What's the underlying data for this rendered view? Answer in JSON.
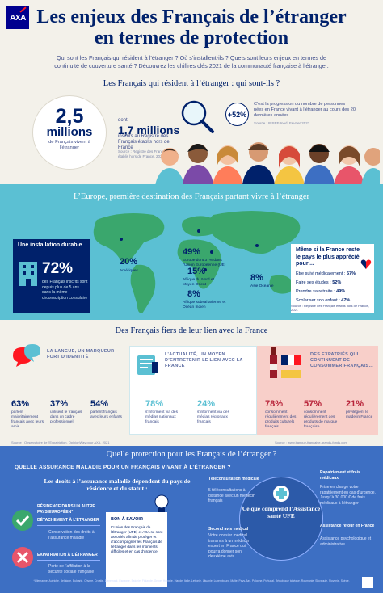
{
  "header": {
    "logo": "AXA",
    "title_line1": "Les enjeux des Français de l’étranger",
    "title_line2": "en termes de protection",
    "intro": "Qui sont les Français qui résident à l’étranger ? Où s’installent-ils ? Quels sont leurs enjeux en termes de continuité de couverture santé ? Découvrez les chiffres clés 2021 de la communauté française à l’étranger."
  },
  "section1": {
    "heading": "Les Français qui résident à l’étranger : qui sont-ils ?",
    "big_number": "2,5",
    "big_unit": "millions",
    "big_caption": "de Français vivent à l’étranger",
    "dont": "dont",
    "small_number": "1,7 millions",
    "small_caption": "inscrits au Registre des Français établis hors de France",
    "small_source": "Source : Registre des Français établis hors de France, 2021",
    "growth": "+52%",
    "growth_caption": "C’est la progression du nombre de personnes nées en France vivant à l’étranger au cours des 20 dernières années.",
    "growth_source": "Source : INSEE/Ined, Février 2021"
  },
  "section2": {
    "heading": "L’Europe, première destination des Français partant vivre à l’étranger",
    "regions": [
      {
        "pct": "49%",
        "label": "Europe dont 37% dans l’Union Européenne (UE)"
      },
      {
        "pct": "20%",
        "label": "Amériques"
      },
      {
        "pct": "15%",
        "label": "Afrique du Nord et Moyen-Orient"
      },
      {
        "pct": "8%",
        "label": "Afrique subsaharienne et Océan Indien"
      },
      {
        "pct": "8%",
        "label": "Asie Océanie"
      }
    ],
    "card_left": {
      "title": "Une installation durable",
      "pct": "72%",
      "caption": "des Français inscrits sont depuis plus de 5 ans dans la même circonscription consulaire"
    },
    "card_right": {
      "title": "Même si la France reste le pays le plus apprécié pour…",
      "items": [
        {
          "label": "Être suivi médicalement :",
          "value": "57%"
        },
        {
          "label": "Faire ses études :",
          "value": "52%"
        },
        {
          "label": "Prendre sa retraite :",
          "value": "49%"
        },
        {
          "label": "Scolariser son enfant :",
          "value": "47%"
        }
      ],
      "source": "Source : Registre des Français établis hors de France, 2021"
    }
  },
  "section3": {
    "heading": "Des Français fiers de leur lien avec la France",
    "col1": {
      "title": "LA LANGUE, UN MARQUEUR FORT D’IDENTITÉ",
      "stats": [
        {
          "pct": "63%",
          "caption": "parlent majoritairement français avec leurs amis"
        },
        {
          "pct": "37%",
          "caption": "utilisent le français dans un cadre professionnel"
        },
        {
          "pct": "54%",
          "caption": "parlent français avec leurs enfants"
        }
      ]
    },
    "col2": {
      "title": "L’ACTUALITÉ, UN MOYEN D’ENTRETENIR LE LIEN AVEC LA FRANCE",
      "stats": [
        {
          "pct": "78%",
          "caption": "s’informent via des médias nationaux français"
        },
        {
          "pct": "24%",
          "caption": "s’informent via des médias régionaux français"
        }
      ]
    },
    "col3": {
      "title": "DES EXPATRIÉS QUI CONTINUENT DE CONSOMMER FRANÇAIS…",
      "stats": [
        {
          "pct": "78%",
          "caption": "consomment régulièrement des produits culturels français"
        },
        {
          "pct": "57%",
          "caption": "consomment régulièrement des produits de marque française"
        },
        {
          "pct": "21%",
          "caption": "privilégient le made in France"
        }
      ]
    },
    "source": "Source : Observatoire de l’Expatriation, OpinionWay pour AXA, 2021",
    "source2": "Source : www.banque-francaise-grands-fonds.com"
  },
  "section4": {
    "heading": "Quelle protection pour les Français de l’étranger ?",
    "title": "QUELLE ASSURANCE MALADIE POUR UN FRANÇAIS VIVANT À L’ÉTRANGER ?",
    "subtitle": "Les droits à l’assurance maladie dépendent du pays de résidence et du statut :",
    "cases": [
      {
        "label": "RÉSIDENCE DANS UN AUTRE PAYS EUROPÉEN*",
        "detail": "DÉTACHEMENT À L’ÉTRANGER",
        "text": "Conservation des droits à l’assurance maladie"
      },
      {
        "label": "EXPATRIATION À L’ÉTRANGER",
        "detail": "",
        "text": "Perte de l’affiliation à la sécurité sociale française"
      }
    ],
    "bon": {
      "title": "BON À SAVOIR",
      "text": "L’Union des Français de l’Étranger (UFE) et AXA se sont associés afin de protéger et d’accompagner les Français de l’étranger dans les moments difficiles et en cas d’urgence."
    },
    "center": "Ce que comprend l’Assistance santé UFE",
    "services_left": [
      {
        "title": "Téléconsultation médicale",
        "text": "5 téléconsultations à distance avec un médecin français"
      },
      {
        "title": "Second avis médical",
        "text": "Votre dossier médical transmis à un médecin expert en France qui pourra donner son deuxième avis"
      }
    ],
    "services_right": [
      {
        "title": "Rapatriement et frais médicaux",
        "text": "Prise en charge votre rapatriement en cas d’urgence. Jusqu’à 30 000 € de frais médicaux à l’étranger"
      },
      {
        "title": "Assistance retour en France",
        "text": "Assistance psychologique et administrative"
      }
    ],
    "footnote": "*Allemagne, Autriche, Belgique, Bulgarie, Chypre, Croatie, Danemark, Espagne, Estonie, Finlande, Grèce, Hongrie, Irlande, Italie, Lettonie, Lituanie, Luxembourg, Malte, Pays-Bas, Pologne, Portugal, République tchèque, Roumanie, Slovaquie, Slovénie, Suède."
  },
  "colors": {
    "navy": "#00216b",
    "axa_blue": "#00008f",
    "axa_red": "#ff1721",
    "teal": "#5bc0d3",
    "blue_section": "#3d6fc3",
    "pink": "#f8cfc9"
  }
}
